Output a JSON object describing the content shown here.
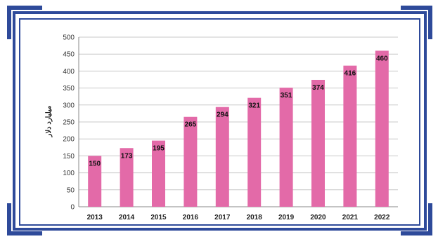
{
  "chart_data": {
    "type": "bar",
    "categories": [
      "2013",
      "2014",
      "2015",
      "2016",
      "2017",
      "2018",
      "2019",
      "2020",
      "2021",
      "2022"
    ],
    "values": [
      150,
      173,
      195,
      265,
      294,
      321,
      351,
      374,
      416,
      460
    ],
    "title": "",
    "xlabel": "",
    "ylabel": "میلیارد دلار",
    "ylim": [
      0,
      500
    ],
    "yticks": [
      0,
      50,
      100,
      150,
      200,
      250,
      300,
      350,
      400,
      450,
      500
    ],
    "grid": true,
    "legend": "none",
    "bar_color": "#e36aa8",
    "grid_color": "#c8c8c8"
  },
  "frame": {
    "color": "#2e4a9a"
  }
}
